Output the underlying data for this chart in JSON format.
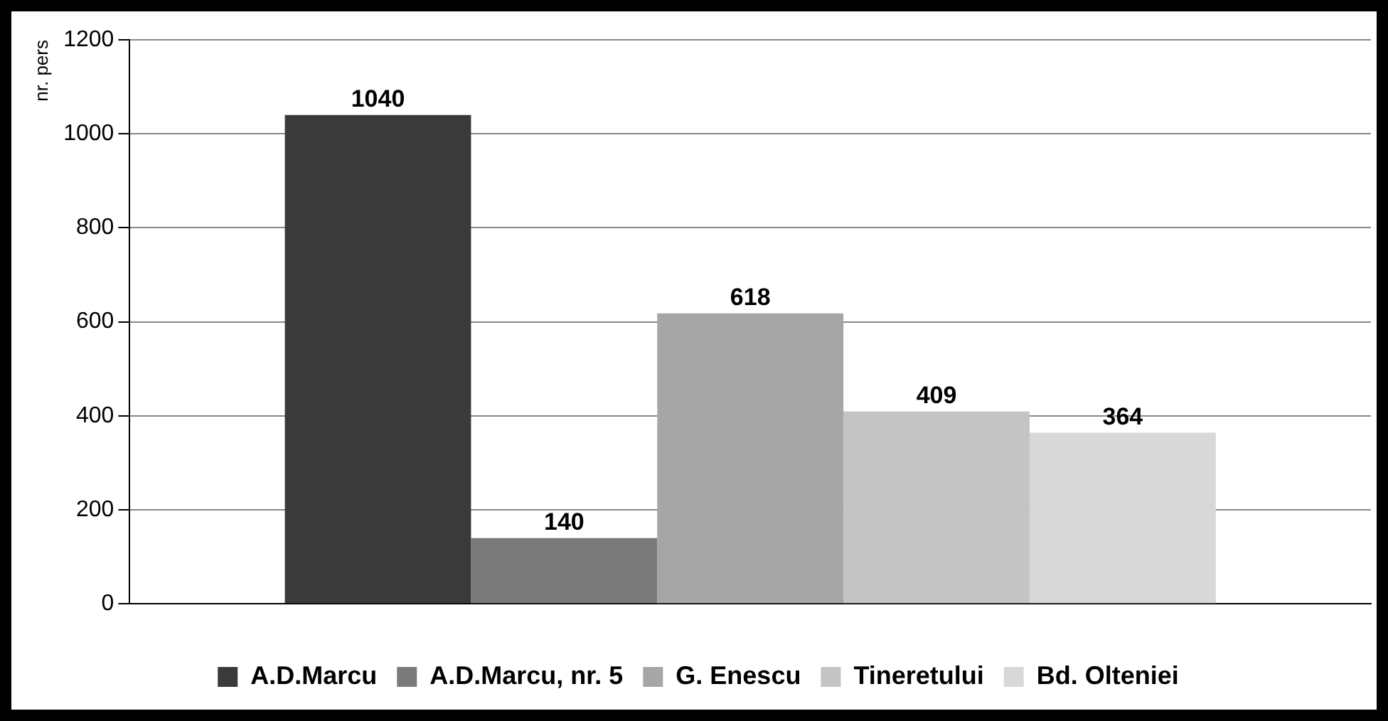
{
  "chart_data": {
    "type": "bar",
    "categories": [
      null
    ],
    "ylabel": "nr. pers",
    "ylim": [
      0,
      1200
    ],
    "yticks": [
      0,
      200,
      400,
      600,
      800,
      1000,
      1200
    ],
    "grid": "y",
    "legend": "bottom",
    "data_labels": true,
    "series": [
      {
        "name": "A.D.Marcu",
        "color": "#3a3a3a",
        "values": [
          1040
        ]
      },
      {
        "name": "A.D.Marcu, nr. 5",
        "color": "#7a7a7a",
        "values": [
          140
        ]
      },
      {
        "name": "G. Enescu",
        "color": "#a6a6a6",
        "values": [
          618
        ]
      },
      {
        "name": "Tineretului",
        "color": "#c4c4c4",
        "values": [
          409
        ]
      },
      {
        "name": "Bd. Olteniei",
        "color": "#d8d8d8",
        "values": [
          364
        ]
      }
    ]
  }
}
